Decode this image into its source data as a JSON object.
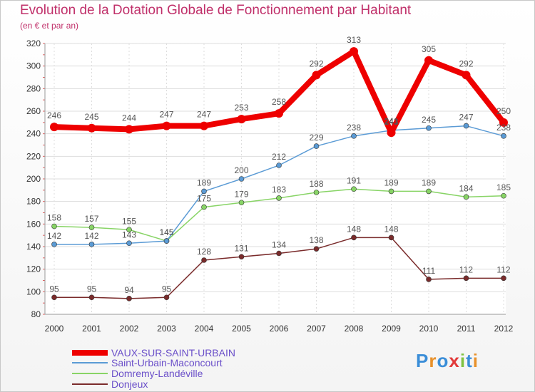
{
  "header": {
    "title": "Evolution de la Dotation Globale de Fonctionnement par Habitant",
    "subtitle": "(en € et par an)"
  },
  "logo": {
    "text": "Proxiti"
  },
  "chart_data": {
    "type": "line",
    "title": "Evolution de la Dotation Globale de Fonctionnement par Habitant",
    "subtitle": "(en € et par an)",
    "xlabel": "",
    "ylabel": "",
    "ylim": [
      80,
      320
    ],
    "yticks": [
      80,
      100,
      120,
      140,
      160,
      180,
      200,
      220,
      240,
      260,
      280,
      300,
      320
    ],
    "x": [
      "2000",
      "2001",
      "2002",
      "2003",
      "2004",
      "2005",
      "2006",
      "2007",
      "2008",
      "2009",
      "2010",
      "2011",
      "2012"
    ],
    "grid": true,
    "legend_position": "bottom-left",
    "series": [
      {
        "name": "VAUX-SUR-SAINT-URBAIN",
        "color": "#ee0000",
        "values": [
          246,
          245,
          244,
          247,
          247,
          253,
          258,
          292,
          313,
          241,
          305,
          292,
          250
        ]
      },
      {
        "name": "Saint-Urbain-Maconcourt",
        "color": "#5b9bd5",
        "values": [
          142,
          142,
          143,
          145,
          189,
          200,
          212,
          229,
          238,
          243,
          245,
          247,
          238
        ]
      },
      {
        "name": "Domremy-Landéville",
        "color": "#88d466",
        "values": [
          158,
          157,
          155,
          145,
          175,
          179,
          183,
          188,
          191,
          189,
          189,
          184,
          185
        ]
      },
      {
        "name": "Donjeux",
        "color": "#7a2b2b",
        "values": [
          95,
          95,
          94,
          95,
          128,
          131,
          134,
          138,
          148,
          148,
          111,
          112,
          112
        ]
      }
    ]
  }
}
